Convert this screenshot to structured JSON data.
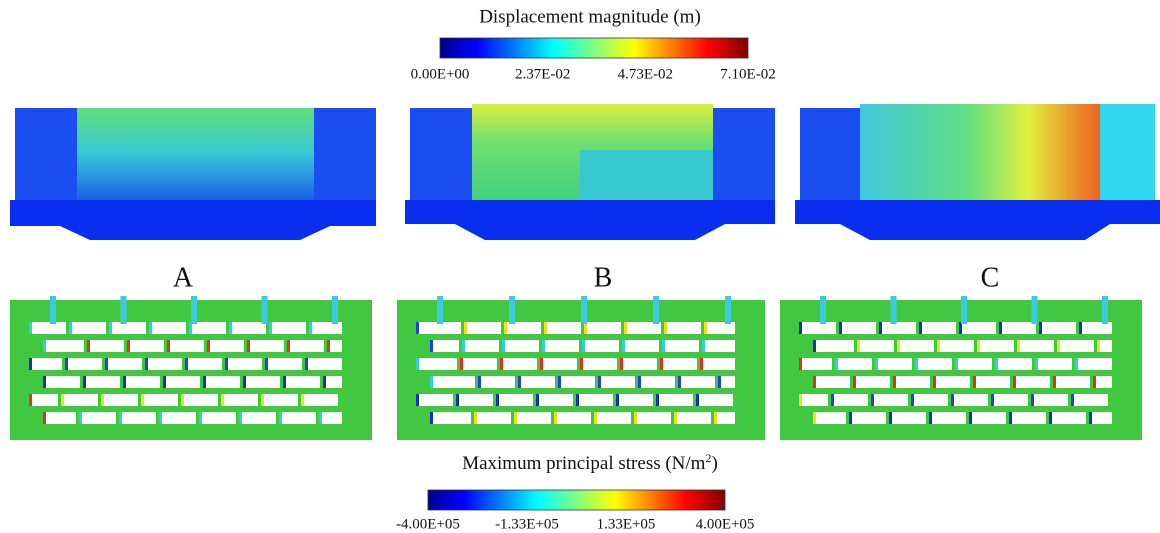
{
  "displacement": {
    "title": "Displacement magnitude (m)",
    "ticks": [
      "0.00E+00",
      "2.37E-02",
      "4.73E-02",
      "7.10E-02"
    ]
  },
  "panels": [
    "A",
    "B",
    "C"
  ],
  "stress": {
    "title": "Maximum principal stress (N/m",
    "title_sup": "2",
    "title_end": ")",
    "ticks": [
      "-4.00E+05",
      "-1.33E+05",
      "1.33E+05",
      "4.00E+05"
    ]
  }
}
